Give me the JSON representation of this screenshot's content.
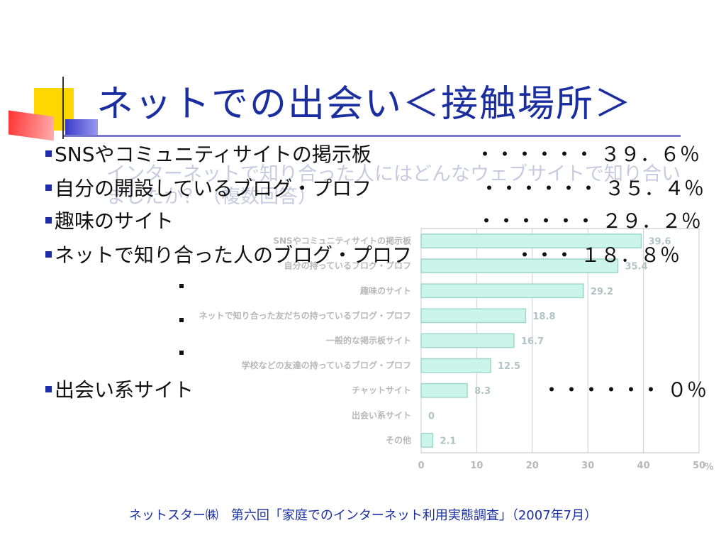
{
  "slide": {
    "title": "ネットでの出会い＜接触場所＞",
    "question": "インターネットで知り合った人にはどんなウェブサイトで知り合いましたか？（複数回答）",
    "bullets": [
      {
        "label": "SNSやコミュニティサイトの掲示板",
        "value": "・・・・・・ ３９．６％"
      },
      {
        "label": "自分の開設しているブログ・プロフ",
        "value": "・・・・・・ ３５．４％"
      },
      {
        "label": "趣味のサイト",
        "value": "・・・・・・ ２９．２％"
      },
      {
        "label": "ネットで知り合った人のブログ・プロフ",
        "value": "・・・ １８．８％"
      },
      {
        "label": "出会い系サイト",
        "value": "・・・・・・ ０％"
      }
    ],
    "source": "ネットスター㈱　第六回「家庭でのインターネット利用実態調査」（2007年7月）"
  },
  "chart_data": {
    "type": "bar",
    "orientation": "horizontal",
    "categories": [
      "SNSやコミュニティサイトの掲示板",
      "自分の持っているブログ・プロフ",
      "趣味のサイト",
      "ネットで知り合った友だちの持っているブログ・プロフ",
      "一般的な掲示板サイト",
      "学校などの友達の持っているブログ・プロフ",
      "チャットサイト",
      "出会い系サイト",
      "その他"
    ],
    "values": [
      39.6,
      35.4,
      29.2,
      18.8,
      16.7,
      12.5,
      8.3,
      0,
      2.1
    ],
    "xlim": [
      0,
      50
    ],
    "xticks": [
      0,
      10,
      20,
      30,
      40,
      50
    ],
    "unit": "%",
    "grid": true,
    "colors": {
      "bar_fill": "#ccf5ea",
      "bar_stroke": "#9fd8c8"
    }
  }
}
